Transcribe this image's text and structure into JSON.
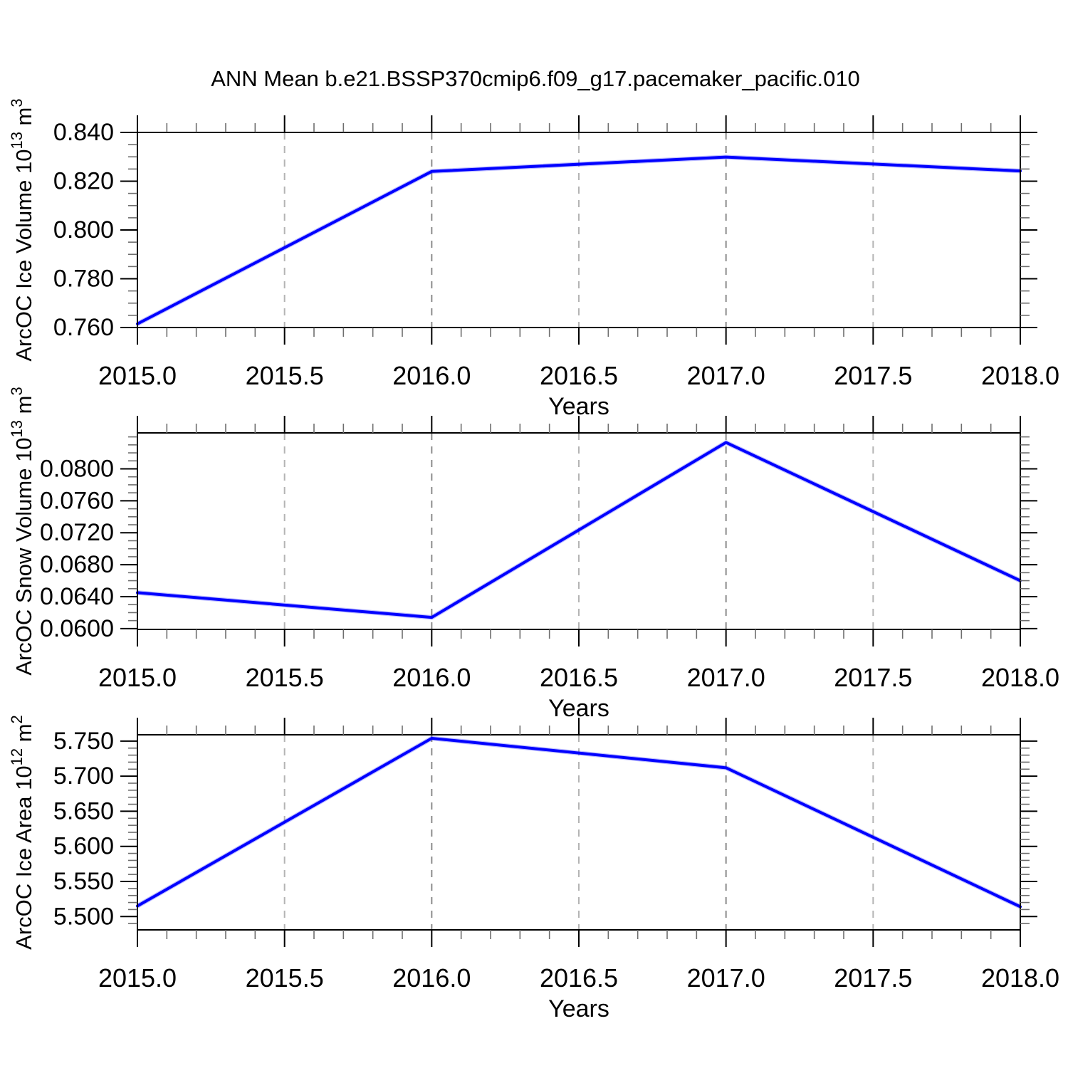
{
  "title": "ANN Mean b.e21.BSSP370cmip6.f09_g17.pacemaker_pacific.010",
  "colors": {
    "line": "#0000ff",
    "frame": "#000000",
    "grid_integer_year": "#8c8c8c",
    "grid_half_year": "#b4b4b4",
    "major_tick": "#000000",
    "minor_tick": "#6e6e6e",
    "text": "#000000"
  },
  "chart_data": [
    {
      "id": "ice-volume",
      "type": "line",
      "title": "",
      "xlabel": "Years",
      "ylabel": "ArcOC Ice Volume 10^13 m^3",
      "ylabel_parts": [
        {
          "text": "ArcOC Ice Volume 10",
          "sup": false
        },
        {
          "text": "13",
          "sup": true
        },
        {
          "text": " m",
          "sup": false
        },
        {
          "text": "3",
          "sup": true
        }
      ],
      "x": [
        2015.0,
        2016.0,
        2017.0,
        2018.0
      ],
      "values": [
        0.7615,
        0.824,
        0.8299,
        0.8242
      ],
      "xlim": [
        2015.0,
        2018.0
      ],
      "ylim": [
        0.76,
        0.84
      ],
      "xticks": [
        2015.0,
        2015.5,
        2016.0,
        2016.5,
        2017.0,
        2017.5,
        2018.0
      ],
      "xtick_labels": [
        "2015.0",
        "2015.5",
        "2016.0",
        "2016.5",
        "2017.0",
        "2017.5",
        "2018.0"
      ],
      "xminor_step": 0.1,
      "yticks": [
        0.76,
        0.78,
        0.8,
        0.82,
        0.84
      ],
      "ytick_labels": [
        "0.760",
        "0.780",
        "0.800",
        "0.820",
        "0.840"
      ],
      "yminor_step": 0.005,
      "grid_x": [
        2015.5,
        2016.0,
        2016.5,
        2017.0,
        2017.5
      ],
      "grid_on": true,
      "legend": "none",
      "line_color": "#0000ff"
    },
    {
      "id": "snow-volume",
      "type": "line",
      "title": "",
      "xlabel": "Years",
      "ylabel": "ArcOC Snow Volume 10^13 m^3",
      "ylabel_parts": [
        {
          "text": "ArcOC Snow Volume 10",
          "sup": false
        },
        {
          "text": "13",
          "sup": true
        },
        {
          "text": " m",
          "sup": false
        },
        {
          "text": "3",
          "sup": true
        }
      ],
      "x": [
        2015.0,
        2016.0,
        2017.0,
        2018.0
      ],
      "values": [
        0.0645,
        0.0614,
        0.0833,
        0.066
      ],
      "xlim": [
        2015.0,
        2018.0
      ],
      "ylim": [
        0.0599,
        0.0845
      ],
      "xticks": [
        2015.0,
        2015.5,
        2016.0,
        2016.5,
        2017.0,
        2017.5,
        2018.0
      ],
      "xtick_labels": [
        "2015.0",
        "2015.5",
        "2016.0",
        "2016.5",
        "2017.0",
        "2017.5",
        "2018.0"
      ],
      "xminor_step": 0.1,
      "yticks": [
        0.06,
        0.064,
        0.068,
        0.072,
        0.076,
        0.08
      ],
      "ytick_labels": [
        "0.0600",
        "0.0640",
        "0.0680",
        "0.0720",
        "0.0760",
        "0.0800"
      ],
      "yminor_step": 0.001,
      "grid_x": [
        2015.5,
        2016.0,
        2016.5,
        2017.0,
        2017.5
      ],
      "grid_on": true,
      "legend": "none",
      "line_color": "#0000ff"
    },
    {
      "id": "ice-area",
      "type": "line",
      "title": "",
      "xlabel": "Years",
      "ylabel": "ArcOC Ice Area 10^12 m^2",
      "ylabel_parts": [
        {
          "text": "ArcOC Ice Area 10",
          "sup": false
        },
        {
          "text": "12",
          "sup": true
        },
        {
          "text": " m",
          "sup": false
        },
        {
          "text": "2",
          "sup": true
        }
      ],
      "x": [
        2015.0,
        2016.0,
        2017.0,
        2018.0
      ],
      "values": [
        5.515,
        5.754,
        5.712,
        5.514
      ],
      "xlim": [
        2015.0,
        2018.0
      ],
      "ylim": [
        5.481,
        5.759
      ],
      "xticks": [
        2015.0,
        2015.5,
        2016.0,
        2016.5,
        2017.0,
        2017.5,
        2018.0
      ],
      "xtick_labels": [
        "2015.0",
        "2015.5",
        "2016.0",
        "2016.5",
        "2017.0",
        "2017.5",
        "2018.0"
      ],
      "xminor_step": 0.1,
      "yticks": [
        5.5,
        5.55,
        5.6,
        5.65,
        5.7,
        5.75
      ],
      "ytick_labels": [
        "5.500",
        "5.550",
        "5.600",
        "5.650",
        "5.700",
        "5.750"
      ],
      "yminor_step": 0.01,
      "grid_x": [
        2015.5,
        2016.0,
        2016.5,
        2017.0,
        2017.5
      ],
      "grid_on": true,
      "legend": "none",
      "line_color": "#0000ff"
    }
  ]
}
